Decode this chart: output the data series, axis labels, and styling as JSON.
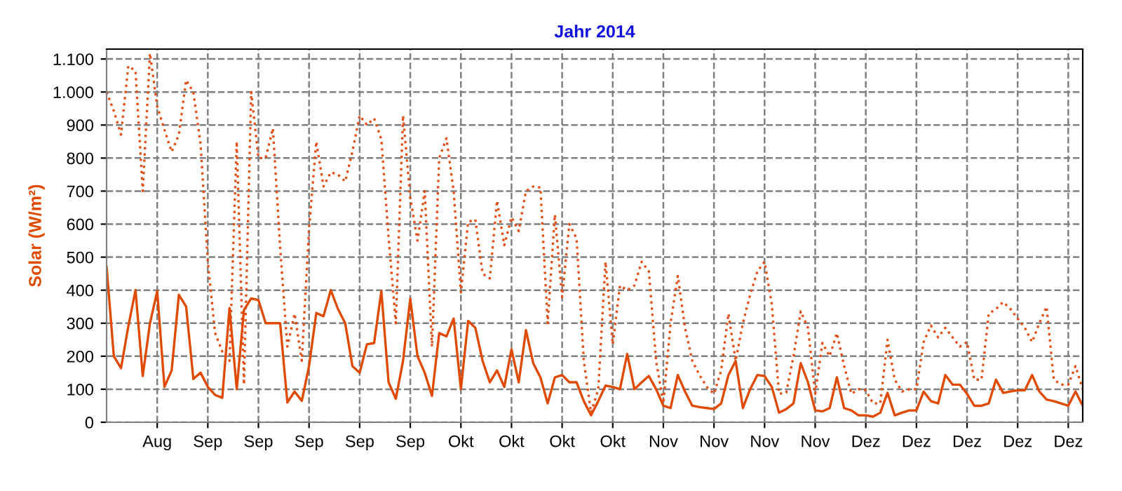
{
  "chart_data": {
    "type": "line",
    "title": "Jahr 2014",
    "ylabel": "Solar (W/m²)",
    "x": [
      "2014-08-18",
      "2014-08-19",
      "2014-08-20",
      "2014-08-21",
      "2014-08-22",
      "2014-08-23",
      "2014-08-24",
      "2014-08-25",
      "2014-08-26",
      "2014-08-27",
      "2014-08-28",
      "2014-08-29",
      "2014-08-30",
      "2014-08-31",
      "2014-09-01",
      "2014-09-02",
      "2014-09-03",
      "2014-09-04",
      "2014-09-05",
      "2014-09-06",
      "2014-09-07",
      "2014-09-08",
      "2014-09-09",
      "2014-09-10",
      "2014-09-11",
      "2014-09-12",
      "2014-09-13",
      "2014-09-14",
      "2014-09-15",
      "2014-09-16",
      "2014-09-17",
      "2014-09-18",
      "2014-09-19",
      "2014-09-20",
      "2014-09-21",
      "2014-09-22",
      "2014-09-23",
      "2014-09-24",
      "2014-09-25",
      "2014-09-26",
      "2014-09-27",
      "2014-09-28",
      "2014-09-29",
      "2014-09-30",
      "2014-10-01",
      "2014-10-02",
      "2014-10-03",
      "2014-10-04",
      "2014-10-05",
      "2014-10-06",
      "2014-10-07",
      "2014-10-08",
      "2014-10-09",
      "2014-10-10",
      "2014-10-11",
      "2014-10-12",
      "2014-10-13",
      "2014-10-14",
      "2014-10-15",
      "2014-10-16",
      "2014-10-17",
      "2014-10-18",
      "2014-10-19",
      "2014-10-20",
      "2014-10-21",
      "2014-10-22",
      "2014-10-23",
      "2014-10-24",
      "2014-10-25",
      "2014-10-26",
      "2014-10-27",
      "2014-10-28",
      "2014-10-29",
      "2014-10-30",
      "2014-10-31",
      "2014-11-01",
      "2014-11-02",
      "2014-11-03",
      "2014-11-04",
      "2014-11-05",
      "2014-11-06",
      "2014-11-07",
      "2014-11-08",
      "2014-11-09",
      "2014-11-10",
      "2014-11-11",
      "2014-11-12",
      "2014-11-13",
      "2014-11-14",
      "2014-11-15",
      "2014-11-16",
      "2014-11-17",
      "2014-11-18",
      "2014-11-19",
      "2014-11-20",
      "2014-11-21",
      "2014-11-22",
      "2014-11-23",
      "2014-11-24",
      "2014-11-25",
      "2014-11-26",
      "2014-11-27",
      "2014-11-28",
      "2014-11-29",
      "2014-11-30",
      "2014-12-01",
      "2014-12-02",
      "2014-12-03",
      "2014-12-04",
      "2014-12-05",
      "2014-12-06",
      "2014-12-07",
      "2014-12-08",
      "2014-12-09",
      "2014-12-10",
      "2014-12-11",
      "2014-12-12",
      "2014-12-13",
      "2014-12-14",
      "2014-12-15",
      "2014-12-16",
      "2014-12-17",
      "2014-12-18",
      "2014-12-19",
      "2014-12-20",
      "2014-12-21",
      "2014-12-22",
      "2014-12-23",
      "2014-12-24",
      "2014-12-25",
      "2014-12-26",
      "2014-12-27",
      "2014-12-28",
      "2014-12-29",
      "2014-12-30",
      "2014-12-31"
    ],
    "series": [
      {
        "color": "#e0501a",
        "line_style": "dotted",
        "values": [
          1000,
          943,
          871,
          1079,
          1064,
          700,
          1117,
          957,
          886,
          819,
          871,
          1036,
          1000,
          843,
          486,
          271,
          214,
          186,
          850,
          114,
          1000,
          800,
          800,
          890,
          530,
          229,
          329,
          186,
          586,
          850,
          714,
          757,
          750,
          729,
          820,
          929,
          900,
          920,
          857,
          560,
          300,
          929,
          680,
          550,
          700,
          229,
          800,
          860,
          700,
          393,
          607,
          614,
          450,
          436,
          671,
          536,
          621,
          579,
          700,
          714,
          711,
          300,
          629,
          379,
          600,
          557,
          186,
          29,
          100,
          486,
          236,
          414,
          400,
          414,
          486,
          457,
          186,
          57,
          300,
          443,
          286,
          186,
          143,
          107,
          86,
          157,
          329,
          186,
          300,
          386,
          457,
          486,
          357,
          86,
          90,
          200,
          336,
          286,
          86,
          240,
          200,
          270,
          171,
          86,
          100,
          97,
          57,
          57,
          250,
          129,
          93,
          100,
          100,
          243,
          293,
          257,
          286,
          257,
          229,
          243,
          129,
          129,
          329,
          343,
          364,
          343,
          314,
          286,
          243,
          300,
          350,
          129,
          114,
          114,
          170,
          100
        ]
      },
      {
        "color": "#e04a00",
        "line_style": "solid",
        "values": [
          471,
          200,
          164,
          290,
          400,
          140,
          300,
          397,
          107,
          157,
          386,
          350,
          131,
          150,
          107,
          83,
          74,
          346,
          100,
          340,
          375,
          370,
          300,
          300,
          300,
          60,
          93,
          65,
          170,
          331,
          321,
          400,
          343,
          300,
          170,
          150,
          236,
          240,
          397,
          121,
          71,
          186,
          374,
          200,
          150,
          80,
          270,
          260,
          314,
          100,
          307,
          286,
          186,
          121,
          157,
          107,
          221,
          121,
          279,
          179,
          136,
          57,
          136,
          143,
          121,
          121,
          64,
          21,
          64,
          111,
          107,
          100,
          207,
          100,
          121,
          140,
          100,
          50,
          43,
          143,
          93,
          50,
          46,
          43,
          40,
          57,
          143,
          186,
          43,
          100,
          143,
          140,
          107,
          29,
          40,
          57,
          179,
          121,
          36,
          33,
          43,
          136,
          43,
          36,
          21,
          21,
          17,
          29,
          89,
          21,
          29,
          36,
          36,
          93,
          64,
          57,
          143,
          114,
          114,
          86,
          50,
          50,
          57,
          129,
          89,
          93,
          97,
          97,
          143,
          93,
          69,
          64,
          57,
          50,
          93,
          50
        ]
      }
    ],
    "xlim": [
      "2014-08-18",
      "2014-12-31"
    ],
    "xticks": [
      {
        "value": "2014-08-25",
        "label": "Aug"
      },
      {
        "value": "2014-09-01",
        "label": "Sep"
      },
      {
        "value": "2014-09-08",
        "label": "Sep"
      },
      {
        "value": "2014-09-15",
        "label": "Sep"
      },
      {
        "value": "2014-09-22",
        "label": "Sep"
      },
      {
        "value": "2014-09-29",
        "label": "Sep"
      },
      {
        "value": "2014-10-06",
        "label": "Okt"
      },
      {
        "value": "2014-10-13",
        "label": "Okt"
      },
      {
        "value": "2014-10-20",
        "label": "Okt"
      },
      {
        "value": "2014-10-27",
        "label": "Okt"
      },
      {
        "value": "2014-11-03",
        "label": "Nov"
      },
      {
        "value": "2014-11-10",
        "label": "Nov"
      },
      {
        "value": "2014-11-17",
        "label": "Nov"
      },
      {
        "value": "2014-11-24",
        "label": "Nov"
      },
      {
        "value": "2014-12-01",
        "label": "Dez"
      },
      {
        "value": "2014-12-08",
        "label": "Dez"
      },
      {
        "value": "2014-12-15",
        "label": "Dez"
      },
      {
        "value": "2014-12-22",
        "label": "Dez"
      },
      {
        "value": "2014-12-29",
        "label": "Dez"
      }
    ],
    "ylim": [
      0,
      1130
    ],
    "yticks": [
      0,
      100,
      200,
      300,
      400,
      500,
      600,
      700,
      800,
      900,
      {
        "value": 1000,
        "label": "1.000"
      },
      {
        "value": 1100,
        "label": "1.100"
      }
    ],
    "grid": true,
    "marker": "none"
  }
}
